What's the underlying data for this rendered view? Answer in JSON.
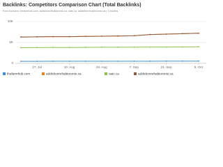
{
  "chart_data": {
    "type": "line",
    "title": "Backlinks: Competitors Comparison Chart (Total Backlinks)",
    "subtitle": "Root Domains: thefarmhub.com, addictionrehabtoronto.ca, oatc.ca, addictionrehabtoronto.ca | 3 months",
    "categories": [
      null,
      "27. Jul",
      null,
      "10. Aug",
      null,
      "24. Aug",
      null,
      "7. Sep",
      null,
      "21. Sep",
      null,
      "5. Oct"
    ],
    "series": [
      {
        "name": "thefarmhub.com",
        "color": "#3b8fd9",
        "values": [
          480,
          480,
          490,
          490,
          500,
          500,
          500,
          510,
          510,
          520,
          520,
          530
        ]
      },
      {
        "name": "addictionrehabtoronto.ca",
        "color": "#f07f20",
        "values": [
          6300,
          6350,
          6400,
          6400,
          6450,
          6500,
          6550,
          6600,
          6900,
          7000,
          7100,
          7200
        ]
      },
      {
        "name": "oatc.ca",
        "color": "#8bc34a",
        "values": [
          3750,
          3780,
          3800,
          3800,
          3820,
          3850,
          3850,
          3880,
          3900,
          3900,
          3920,
          3950
        ]
      },
      {
        "name": "addictionrehabtoronto.ca",
        "color": "#8d5a3b",
        "values": [
          6300,
          6350,
          6400,
          6400,
          6450,
          6500,
          6550,
          6600,
          6900,
          7000,
          7100,
          7200
        ]
      }
    ],
    "ylim": [
      0,
      10000
    ],
    "yticks": [
      0,
      {
        "value": 5000,
        "label": "5K"
      },
      {
        "value": 10000,
        "label": "10K"
      }
    ],
    "grid": true
  }
}
